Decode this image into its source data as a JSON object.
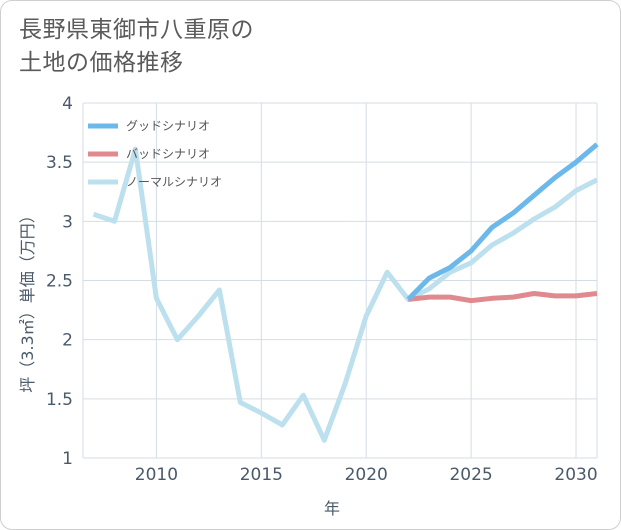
{
  "title_lines": [
    "長野県東御市八重原の",
    "土地の価格推移"
  ],
  "chart_data": {
    "type": "line",
    "title": "長野県東御市八重原の土地の価格推移",
    "xlabel": "年",
    "ylabel": "坪（3.3㎡）単価（万円）",
    "xlim": [
      2006.5,
      2031
    ],
    "ylim": [
      1,
      4
    ],
    "x_ticks": [
      2010,
      2015,
      2020,
      2025,
      2030
    ],
    "y_ticks": [
      1,
      1.5,
      2,
      2.5,
      3,
      3.5,
      4
    ],
    "y_tick_labels": [
      "1",
      "1.5",
      "2",
      "2.5",
      "3",
      "3.5",
      "4"
    ],
    "grid": true,
    "legend_position": "top-left",
    "series": [
      {
        "name": "グッドシナリオ",
        "color": "#6cb8ea",
        "x": [
          2022,
          2023,
          2024,
          2025,
          2026,
          2027,
          2028,
          2029,
          2030,
          2031
        ],
        "values": [
          2.34,
          2.52,
          2.61,
          2.75,
          2.95,
          3.07,
          3.22,
          3.37,
          3.5,
          3.65
        ]
      },
      {
        "name": "バッドシナリオ",
        "color": "#e08a90",
        "x": [
          2022,
          2023,
          2024,
          2025,
          2026,
          2027,
          2028,
          2029,
          2030,
          2031
        ],
        "values": [
          2.34,
          2.36,
          2.36,
          2.33,
          2.35,
          2.36,
          2.39,
          2.37,
          2.37,
          2.39
        ]
      },
      {
        "name": "ノーマルシナリオ",
        "color": "#bde0ee",
        "x": [
          2007,
          2008,
          2009,
          2010,
          2011,
          2012,
          2013,
          2014,
          2015,
          2016,
          2017,
          2018,
          2019,
          2020,
          2021,
          2022,
          2023,
          2024,
          2025,
          2026,
          2027,
          2028,
          2029,
          2030,
          2031
        ],
        "values": [
          3.06,
          3.0,
          3.61,
          2.35,
          2.0,
          2.2,
          2.42,
          1.47,
          1.38,
          1.28,
          1.53,
          1.15,
          1.63,
          2.2,
          2.57,
          2.34,
          2.43,
          2.57,
          2.65,
          2.8,
          2.9,
          3.02,
          3.12,
          3.26,
          3.35
        ]
      }
    ]
  }
}
